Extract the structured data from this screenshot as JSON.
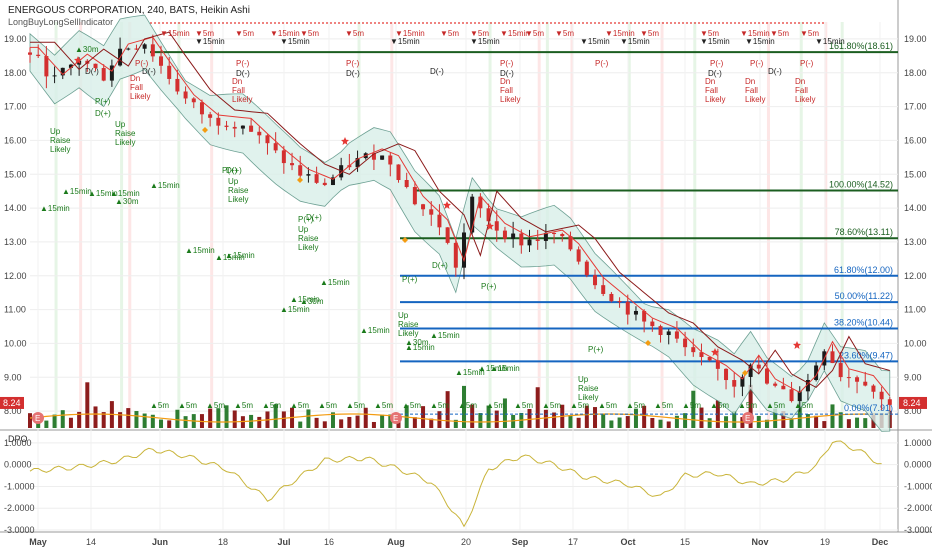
{
  "header": {
    "title": "ENERGOUS CORPORATION, 240, BATS, Heikin Ashi",
    "indicator": "LongBuyLongSellIndicator",
    "dpo_label": "DPO"
  },
  "colors": {
    "up_candle": "#1a1a1a",
    "down_candle": "#d32f2f",
    "fib_green": "#1b5e20",
    "fib_blue": "#1565c0",
    "volume_up": "#2e7d32",
    "volume_down": "#8d1c1c",
    "dpo_line": "#c9b43a",
    "band_fill": "#d9efe9",
    "price_badge": "#d32f2f"
  },
  "price_badge": "8.24",
  "chart_data": [
    {
      "type": "candlestick",
      "title": "ENERGOUS CORPORATION, 240, BATS, Heikin Ashi",
      "ylim": [
        7.5,
        19.5
      ],
      "y_ticks": [
        8.0,
        9.0,
        10.0,
        11.0,
        12.0,
        13.0,
        14.0,
        15.0,
        16.0,
        17.0,
        18.0,
        19.0
      ],
      "x_tick_labels": [
        "May",
        "14",
        "Jun",
        "18",
        "Jul",
        "16",
        "Aug",
        "20",
        "Sep",
        "17",
        "Oct",
        "15",
        "Nov",
        "19",
        "Dec"
      ],
      "grid": true,
      "close_path": [
        [
          0,
          18.6
        ],
        [
          3,
          17.8
        ],
        [
          6,
          18.4
        ],
        [
          9,
          17.9
        ],
        [
          11,
          18.7
        ],
        [
          14,
          18.9
        ],
        [
          16,
          18.2
        ],
        [
          19,
          17.2
        ],
        [
          22,
          16.6
        ],
        [
          26,
          16.5
        ],
        [
          30,
          15.6
        ],
        [
          33,
          15.0
        ],
        [
          36,
          14.7
        ],
        [
          39,
          15.3
        ],
        [
          42,
          15.6
        ],
        [
          44,
          15.4
        ],
        [
          47,
          14.2
        ],
        [
          50,
          13.5
        ],
        [
          52,
          12.3
        ],
        [
          54,
          14.2
        ],
        [
          57,
          13.4
        ],
        [
          60,
          13.0
        ],
        [
          64,
          13.2
        ],
        [
          66,
          12.8
        ],
        [
          69,
          11.8
        ],
        [
          72,
          11.2
        ],
        [
          75,
          10.6
        ],
        [
          78,
          10.3
        ],
        [
          81,
          9.6
        ],
        [
          84,
          9.2
        ],
        [
          86,
          8.8
        ],
        [
          88,
          9.5
        ],
        [
          90,
          8.8
        ],
        [
          93,
          8.4
        ],
        [
          95,
          8.9
        ],
        [
          97,
          9.9
        ],
        [
          99,
          9.1
        ],
        [
          102,
          8.9
        ],
        [
          104,
          8.3
        ]
      ],
      "fib_levels": [
        {
          "label": "161.80%(18.61)",
          "value": 18.61,
          "color": "green"
        },
        {
          "label": "100.00%(14.52)",
          "value": 14.52,
          "color": "green"
        },
        {
          "label": "78.60%(13.11)",
          "value": 13.11,
          "color": "green"
        },
        {
          "label": "61.80%(12.00)",
          "value": 12.0,
          "color": "blue"
        },
        {
          "label": "50.00%(11.22)",
          "value": 11.22,
          "color": "blue"
        },
        {
          "label": "38.20%(10.44)",
          "value": 10.44,
          "color": "blue"
        },
        {
          "label": "23.60%(9.47)",
          "value": 9.47,
          "color": "blue"
        },
        {
          "label": "0.00%(7.91)",
          "value": 7.91,
          "color": "blue"
        }
      ],
      "last_price": 8.24
    },
    {
      "type": "line",
      "title": "DPO",
      "ylim": [
        -3.0,
        1.5
      ],
      "y_ticks": [
        1.0,
        0.0,
        -1.0,
        -2.0,
        -3.0
      ],
      "y_tick_labels": [
        "1.0000",
        "0.0000",
        "-1.0000",
        "-2.0000",
        "-3.0000"
      ],
      "series_points": [
        [
          0,
          -0.3
        ],
        [
          6,
          -0.1
        ],
        [
          11,
          0.2
        ],
        [
          15,
          0.7
        ],
        [
          19,
          0.4
        ],
        [
          24,
          -0.2
        ],
        [
          29,
          -1.6
        ],
        [
          32,
          -0.8
        ],
        [
          36,
          0.2
        ],
        [
          41,
          0.3
        ],
        [
          45,
          -0.2
        ],
        [
          49,
          -0.8
        ],
        [
          52,
          -2.3
        ],
        [
          53,
          -2.9
        ],
        [
          56,
          -0.2
        ],
        [
          60,
          0.4
        ],
        [
          64,
          0.0
        ],
        [
          68,
          -0.6
        ],
        [
          73,
          -0.9
        ],
        [
          77,
          -1.5
        ],
        [
          80,
          -0.5
        ],
        [
          84,
          -0.4
        ],
        [
          88,
          -0.9
        ],
        [
          92,
          -0.7
        ],
        [
          96,
          -0.1
        ],
        [
          98,
          1.1
        ],
        [
          101,
          0.7
        ],
        [
          104,
          0.0
        ]
      ]
    }
  ],
  "annotations": {
    "signal_15min": "▲15min",
    "signal_30m": "▲30m",
    "signal_5m": "▲5m",
    "sell_5m": "▼5m",
    "sell_15min": "▼15min",
    "up_raise": "Up Raise Likely",
    "dn_fall": "Dn Fall Likely",
    "p_plus": "P(+)",
    "d_plus": "D(+)",
    "p_minus": "P(-)",
    "d_minus": "D(-)"
  }
}
